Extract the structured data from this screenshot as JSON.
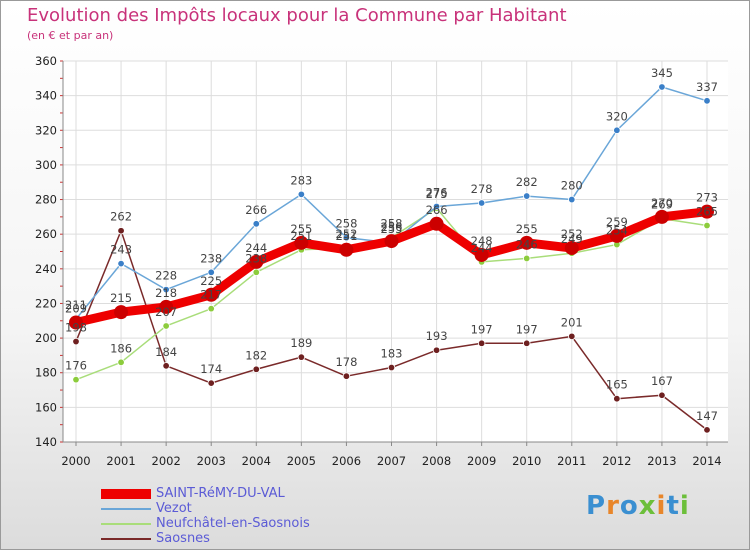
{
  "title": "Evolution des Impôts locaux pour la Commune par Habitant",
  "subtitle": "(en € et par an)",
  "logo": {
    "text": "Proxiti",
    "letter_colors": [
      "#3a8fd1",
      "#e8862a",
      "#3a8fd1",
      "#6cbf3a",
      "#e8862a",
      "#3a8fd1",
      "#6cbf3a"
    ]
  },
  "chart_data": {
    "type": "line",
    "title": "Evolution des Impôts locaux pour la Commune par Habitant",
    "subtitle": "(en € et par an)",
    "xlabel": "",
    "ylabel": "",
    "x": [
      2000,
      2001,
      2002,
      2003,
      2004,
      2005,
      2006,
      2007,
      2008,
      2009,
      2010,
      2011,
      2012,
      2013,
      2014
    ],
    "ylim": [
      140,
      360
    ],
    "yticks": [
      140,
      160,
      180,
      200,
      220,
      240,
      260,
      280,
      300,
      320,
      340,
      360
    ],
    "grid": true,
    "series": [
      {
        "name": "Saosnes",
        "color": "#7a2a2a",
        "marker": "#6e2020",
        "values": [
          198,
          262,
          184,
          174,
          182,
          189,
          178,
          183,
          193,
          197,
          197,
          201,
          165,
          167,
          147
        ],
        "labels": [
          "198",
          "262",
          "184",
          "174",
          "182",
          "189",
          "178",
          "183",
          "193",
          "197",
          "197",
          "201",
          "165",
          "167",
          "147"
        ]
      },
      {
        "name": "Neufchâtel-en-Saosnois",
        "color": "#a9dd7a",
        "marker": "#8ccc3c",
        "values": [
          176,
          186,
          207,
          217,
          238,
          251,
          252,
          258,
          275,
          244,
          246,
          249,
          254,
          269,
          265
        ],
        "labels": [
          "176",
          "186",
          "207",
          "217",
          "238",
          "251",
          "252",
          "258",
          "275",
          "244",
          "246",
          "249",
          "254",
          "269",
          "265"
        ]
      },
      {
        "name": "Vezot",
        "color": "#6aa6d8",
        "marker": "#3a7fc8",
        "values": [
          211,
          243,
          228,
          238,
          266,
          283,
          258,
          255,
          276,
          278,
          282,
          280,
          320,
          345,
          337
        ],
        "labels": [
          "211",
          "243",
          "228",
          "238",
          "266",
          "283",
          "258",
          "255",
          "276",
          "278",
          "282",
          "280",
          "320",
          "345",
          "337"
        ]
      },
      {
        "name": "SAINT-RéMY-DU-VAL",
        "color": "#ee0000",
        "marker": "#cc0000",
        "values": [
          209,
          215,
          218,
          225,
          244,
          255,
          251,
          256,
          266,
          248,
          255,
          252,
          259,
          270,
          273
        ],
        "labels": [
          "209",
          "215",
          "218",
          "225",
          "244",
          "255",
          "251",
          "256",
          "266",
          "248",
          "255",
          "252",
          "259",
          "270",
          "273"
        ]
      }
    ]
  },
  "legend": [
    {
      "label": "SAINT-RéMY-DU-VAL",
      "color": "#ee0000"
    },
    {
      "label": "Vezot",
      "color": "#6aa6d8"
    },
    {
      "label": "Neufchâtel-en-Saosnois",
      "color": "#a9dd7a"
    },
    {
      "label": "Saosnes",
      "color": "#7a2a2a"
    }
  ]
}
